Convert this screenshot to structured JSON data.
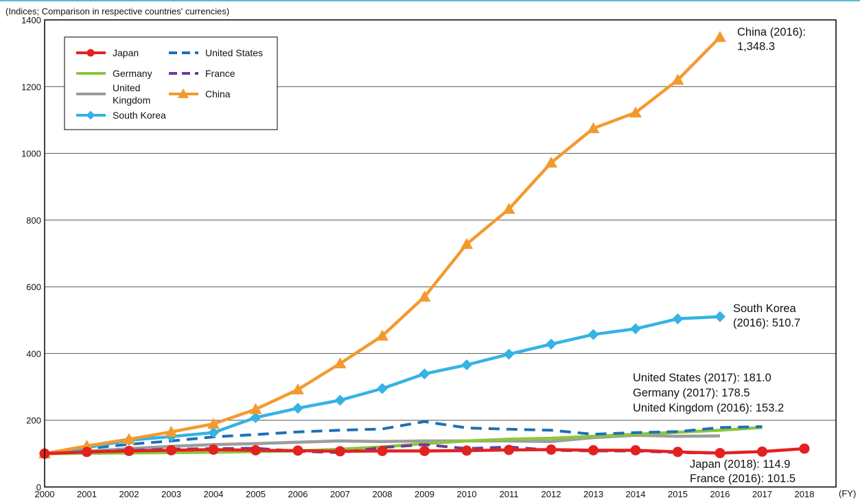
{
  "chart_data": {
    "type": "line",
    "unit_note": "(Indices; Comparison in respective countries' currencies)",
    "x_unit": "(FY)",
    "x": [
      2000,
      2001,
      2002,
      2003,
      2004,
      2005,
      2006,
      2007,
      2008,
      2009,
      2010,
      2011,
      2012,
      2013,
      2014,
      2015,
      2016,
      2017,
      2018
    ],
    "x_tick_labels": [
      "2000",
      "2001",
      "2002",
      "2003",
      "2004",
      "2005",
      "2006",
      "2007",
      "2008",
      "2009",
      "2010",
      "2011",
      "2012",
      "2013",
      "2014",
      "2015",
      "2016",
      "2017",
      "2018"
    ],
    "ylim": [
      0,
      1400
    ],
    "y_ticks": [
      0,
      200,
      400,
      600,
      800,
      1000,
      1200,
      1400
    ],
    "grid": "horizontal",
    "legend_position": "top-left",
    "series": [
      {
        "name": "Japan",
        "color": "#e3211f",
        "style": "solid",
        "marker": "circle",
        "values": [
          100,
          105,
          108,
          110,
          112,
          110,
          109,
          107,
          108,
          108,
          109,
          111,
          112,
          110,
          110,
          105,
          101.5,
          106,
          114.9
        ]
      },
      {
        "name": "United States",
        "color": "#1e6fb5",
        "style": "dashed",
        "marker": "none",
        "values": [
          100,
          115,
          128,
          138,
          150,
          157,
          165,
          170,
          174,
          196,
          177,
          173,
          170,
          158,
          163,
          166,
          178,
          181.0,
          null
        ]
      },
      {
        "name": "Germany",
        "color": "#8cc63f",
        "style": "solid",
        "marker": "none",
        "values": [
          100,
          101,
          102,
          103,
          104,
          106,
          108,
          113,
          120,
          130,
          138,
          143,
          146,
          152,
          158,
          164,
          170,
          178.5,
          null
        ]
      },
      {
        "name": "France",
        "color": "#6a3d9a",
        "style": "dashed",
        "marker": "none",
        "values": [
          100,
          105,
          110,
          113,
          115,
          116,
          107,
          103,
          118,
          127,
          115,
          120,
          110,
          108,
          108,
          103,
          101.5,
          null,
          null
        ]
      },
      {
        "name": "United Kingdom",
        "color": "#9d9d9d",
        "style": "solid",
        "marker": "none",
        "values": [
          100,
          107,
          115,
          122,
          127,
          130,
          134,
          138,
          136,
          138,
          138,
          138,
          136,
          148,
          155,
          152,
          153.2,
          null,
          null
        ]
      },
      {
        "name": "China",
        "color": "#f39a2e",
        "style": "solid",
        "marker": "triangle",
        "values": [
          100,
          123,
          143,
          165,
          189,
          233,
          292,
          370,
          453,
          570,
          728,
          833,
          972,
          1075,
          1122,
          1220,
          1348.3,
          null,
          null
        ]
      },
      {
        "name": "South Korea",
        "color": "#34b3e4",
        "style": "solid",
        "marker": "diamond",
        "values": [
          100,
          118,
          140,
          151,
          163,
          208,
          236,
          260,
          295,
          339,
          366,
          398,
          428,
          457,
          474,
          504,
          510.7,
          null,
          null
        ]
      }
    ],
    "legend": {
      "japan": "Japan",
      "united_states": "United States",
      "germany": "Germany",
      "france": "France",
      "united_kingdom_line1": "United",
      "united_kingdom_line2": "Kingdom",
      "china": "China",
      "south_korea": "South Korea"
    },
    "annotations": {
      "china_line1": "China (2016):",
      "china_line2": "1,348.3",
      "korea_line1": "South Korea",
      "korea_line2": "(2016): 510.7",
      "us": "United States (2017): 181.0",
      "germany": "Germany (2017): 178.5",
      "uk": "United Kingdom (2016): 153.2",
      "japan": "Japan (2018): 114.9",
      "france": "France (2016): 101.5"
    }
  }
}
